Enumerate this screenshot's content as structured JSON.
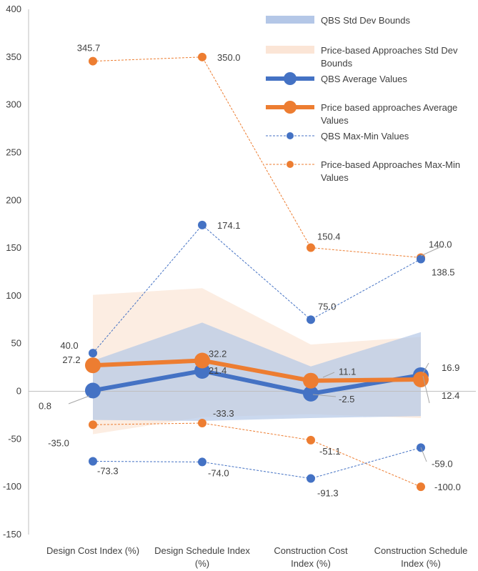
{
  "chart_data": {
    "type": "line",
    "categories": [
      [
        "Design Cost Index (%)"
      ],
      [
        "Design Schedule Index",
        "(%)"
      ],
      [
        "Construction Cost",
        "Index (%)"
      ],
      [
        "Construction  Schedule",
        "Index (%)"
      ]
    ],
    "ylim": [
      -150,
      400
    ],
    "yticks": [
      -150,
      -100,
      -50,
      0,
      50,
      100,
      150,
      200,
      250,
      300,
      350,
      400
    ],
    "grid": false,
    "legend_position": "top-right",
    "bands": [
      {
        "name": "QBS Std Dev Bounds",
        "color": "#b4c7e7",
        "opacity": 0.7,
        "upper": [
          32,
          72,
          26,
          62
        ],
        "lower": [
          -30,
          -31,
          -28,
          -26
        ]
      },
      {
        "name": "Price-based Approaches Std Dev Bounds",
        "color": "#fbe5d6",
        "opacity": 0.7,
        "upper": [
          101,
          108,
          49,
          57
        ],
        "lower": [
          -45,
          -27,
          -24,
          -28
        ]
      }
    ],
    "series": [
      {
        "name": "QBS Average Values",
        "color": "#4472c4",
        "style": "thick",
        "values": [
          0.8,
          21.4,
          -2.5,
          16.9
        ],
        "labels": [
          "0.8",
          "21.4",
          "-2.5",
          "16.9"
        ]
      },
      {
        "name": "Price based approaches Average Values",
        "color": "#ed7d31",
        "style": "thick",
        "values": [
          27.2,
          32.2,
          11.1,
          12.4
        ],
        "labels": [
          "27.2",
          "32.2",
          "11.1",
          "12.4"
        ]
      },
      {
        "name": "QBS Max-Min Values",
        "color": "#4472c4",
        "style": "dotted",
        "max": [
          40.0,
          174.1,
          75.0,
          138.5
        ],
        "min": [
          -73.3,
          -74.0,
          -91.3,
          -59.0
        ],
        "max_labels": [
          "40.0",
          "174.1",
          "75.0",
          "138.5"
        ],
        "min_labels": [
          "-73.3",
          "-74.0",
          "-91.3",
          "-59.0"
        ]
      },
      {
        "name": "Price-based Approaches Max-Min Values",
        "color": "#ed7d31",
        "style": "dotted",
        "max": [
          345.7,
          350.0,
          150.4,
          140.0
        ],
        "min": [
          -35.0,
          -33.3,
          -51.1,
          -100.0
        ],
        "max_labels": [
          "345.7",
          "350.0",
          "150.4",
          "140.0"
        ],
        "min_labels": [
          "-35.0",
          "-33.3",
          "-51.1",
          "-100.0"
        ]
      }
    ],
    "legend": [
      {
        "lines": [
          "QBS Std Dev Bounds"
        ]
      },
      {
        "lines": [
          "Price-based Approaches Std Dev",
          "Bounds"
        ]
      },
      {
        "lines": [
          "QBS Average Values"
        ]
      },
      {
        "lines": [
          "Price based approaches Average",
          "Values"
        ]
      },
      {
        "lines": [
          "QBS Max-Min Values"
        ]
      },
      {
        "lines": [
          "Price-based Approaches Max-Min",
          "Values"
        ]
      }
    ]
  }
}
